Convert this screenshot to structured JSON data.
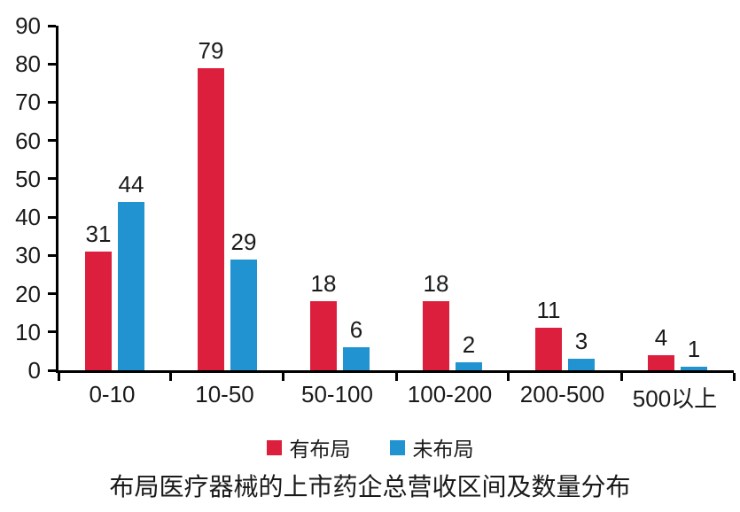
{
  "chart_data": {
    "type": "bar",
    "title": "布局医疗器械的上市药企总营收区间及数量分布",
    "categories": [
      "0-10",
      "10-50",
      "50-100",
      "100-200",
      "200-500",
      "500以上"
    ],
    "series": [
      {
        "name": "有布局",
        "color": "#dc1f3c",
        "values": [
          31,
          79,
          18,
          18,
          11,
          4
        ]
      },
      {
        "name": "未布局",
        "color": "#2193d1",
        "values": [
          44,
          29,
          6,
          2,
          3,
          1
        ]
      }
    ],
    "ylim": [
      0,
      90
    ],
    "y_ticks": [
      0,
      10,
      20,
      30,
      40,
      50,
      60,
      70,
      80,
      90
    ],
    "grid": false,
    "legend_position": "bottom",
    "xlabel": "",
    "ylabel": "",
    "axis_color": "#000000",
    "text_color": "#1a1a1a",
    "background_color": "#ffffff"
  }
}
